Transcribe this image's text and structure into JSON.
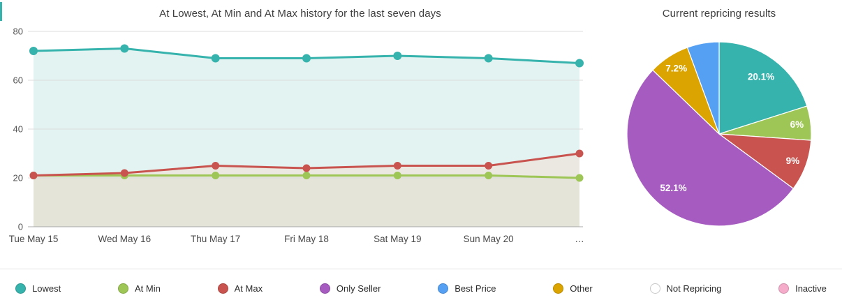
{
  "accent_color": "#36b3ac",
  "chart_data": [
    {
      "type": "line",
      "title": "At Lowest, At Min and At Max history for the last seven days",
      "x": [
        "Tue May 15",
        "Wed May 16",
        "Thu May 17",
        "Fri May 18",
        "Sat May 19",
        "Sun May 20",
        "…"
      ],
      "series": [
        {
          "name": "Lowest",
          "color": "#36b3ac",
          "fill": "#e2f3f1",
          "values": [
            72,
            73,
            69,
            69,
            70,
            69,
            67
          ]
        },
        {
          "name": "At Max",
          "color": "#c9544f",
          "fill": "#eae8e1",
          "values": [
            21,
            22,
            25,
            24,
            25,
            25,
            30
          ]
        },
        {
          "name": "At Min",
          "color": "#9ec656",
          "fill": "#e4e4d9",
          "values": [
            21,
            21,
            21,
            21,
            21,
            21,
            20
          ]
        }
      ],
      "ylim": [
        0,
        80
      ],
      "y_ticks": [
        0,
        20,
        40,
        60,
        80
      ],
      "grid": true,
      "legend_position": "bottom"
    },
    {
      "type": "pie",
      "title": "Current repricing results",
      "slices": [
        {
          "name": "Lowest",
          "value": 20.1,
          "label": "20.1%",
          "color": "#36b3ac"
        },
        {
          "name": "At Min",
          "value": 6,
          "label": "6%",
          "color": "#9ec656"
        },
        {
          "name": "At Max",
          "value": 9,
          "label": "9%",
          "color": "#c9544f"
        },
        {
          "name": "Only Seller",
          "value": 52.1,
          "label": "52.1%",
          "color": "#a55bc0"
        },
        {
          "name": "Other",
          "value": 7.2,
          "label": "7.2%",
          "color": "#dba400"
        },
        {
          "name": "Best Price",
          "value": 5.6,
          "label": "",
          "color": "#55a0f2"
        }
      ]
    }
  ],
  "legend": {
    "items": [
      {
        "label": "Lowest",
        "color": "#36b3ac"
      },
      {
        "label": "At Min",
        "color": "#9ec656"
      },
      {
        "label": "At Max",
        "color": "#c9544f"
      },
      {
        "label": "Only Seller",
        "color": "#a55bc0"
      },
      {
        "label": "Best Price",
        "color": "#55a0f2"
      },
      {
        "label": "Other",
        "color": "#dba400"
      },
      {
        "label": "Not Repricing",
        "color": "#ffffff",
        "border": "#c9c9c9"
      },
      {
        "label": "Inactive",
        "color": "#f5abca"
      }
    ]
  }
}
